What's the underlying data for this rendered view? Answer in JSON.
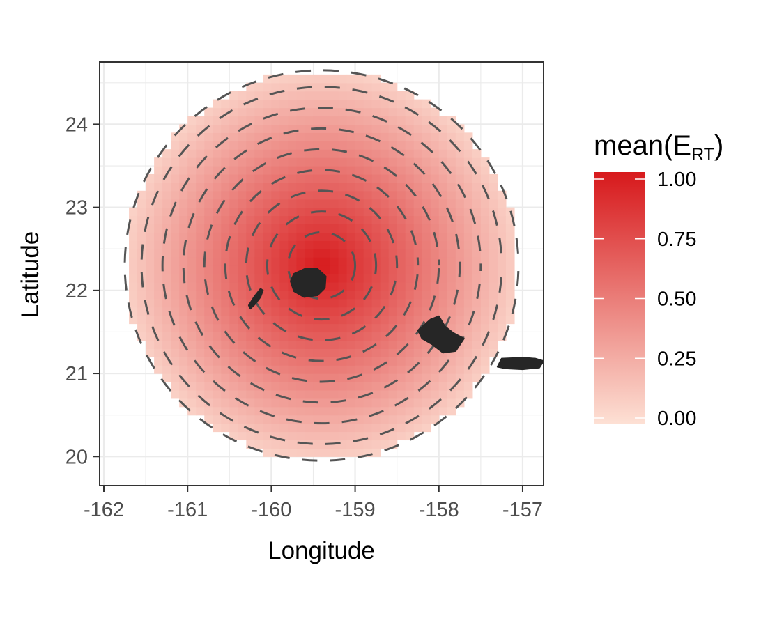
{
  "chart_data": {
    "type": "heatmap",
    "title": "",
    "xlabel": "Longitude",
    "ylabel": "Latitude",
    "xlim": [
      -162.05,
      -156.75
    ],
    "ylim": [
      19.65,
      24.75
    ],
    "x_ticks": [
      -162,
      -161,
      -160,
      -159,
      -158,
      -157
    ],
    "y_ticks": [
      20,
      21,
      22,
      23,
      24
    ],
    "x_tick_labels": [
      "-162",
      "-161",
      "-160",
      "-159",
      "-158",
      "-157"
    ],
    "y_tick_labels": [
      "20",
      "21",
      "22",
      "23",
      "24"
    ],
    "grid": true,
    "field": {
      "description_of_values": "mean(E_RT) over a circular region",
      "center": [
        -159.4,
        22.3
      ],
      "radius_deg": 2.35,
      "max_value": 1.0,
      "min_value": 0.0,
      "cell_size_deg": 0.1
    },
    "contours": {
      "style": "dashed",
      "color": "#555555",
      "levels_radius_deg": [
        0.4,
        0.65,
        0.9,
        1.15,
        1.4,
        1.65,
        1.9,
        2.15,
        2.35
      ]
    },
    "islands": [
      {
        "name": "Kauai",
        "center": [
          -159.55,
          22.07
        ]
      },
      {
        "name": "Niihau",
        "center": [
          -160.15,
          21.9
        ]
      },
      {
        "name": "Oahu",
        "center": [
          -158.0,
          21.47
        ]
      },
      {
        "name": "Molokai",
        "center": [
          -157.0,
          21.13
        ]
      }
    ],
    "legend": {
      "title_main": "mean(E",
      "title_sub": "RT",
      "title_close": ")",
      "placement": "right",
      "labels": [
        "1.00",
        "0.75",
        "0.50",
        "0.25",
        "0.00"
      ],
      "values": [
        1.0,
        0.75,
        0.5,
        0.25,
        0.0
      ],
      "color_low": "#fde0d4",
      "color_high": "#d7191c"
    }
  }
}
